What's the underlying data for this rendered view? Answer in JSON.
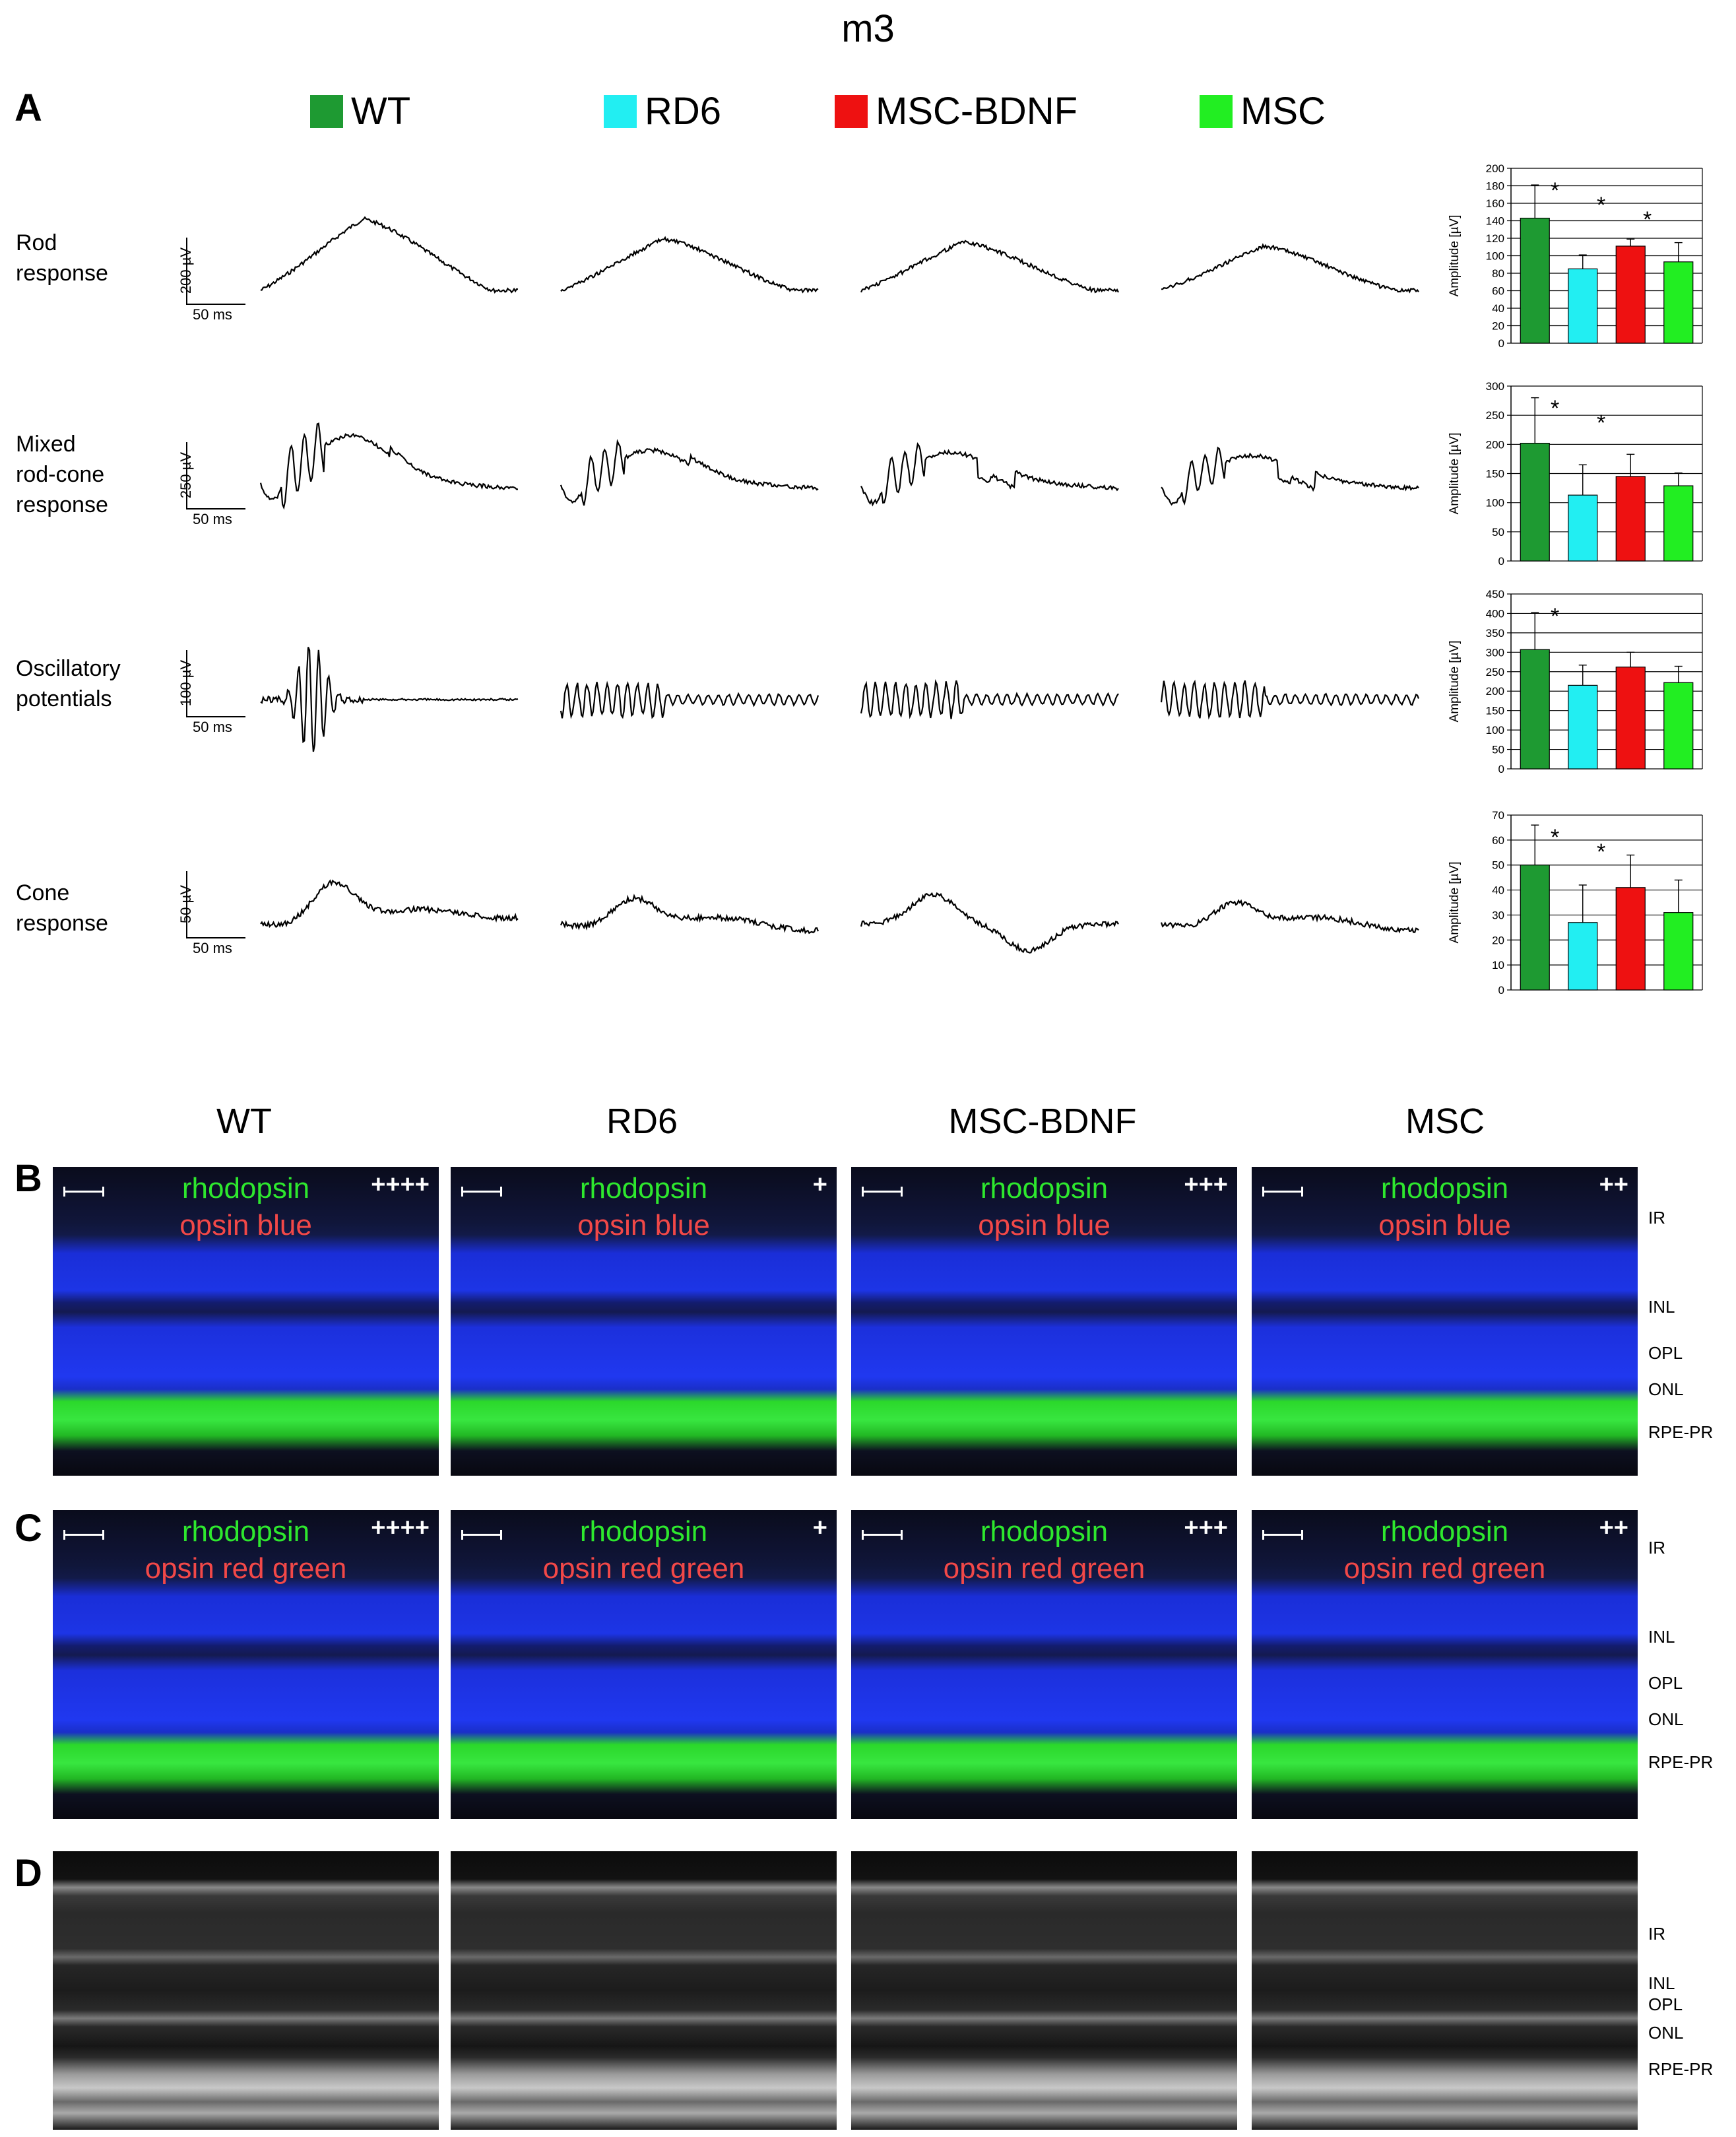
{
  "title": "m3",
  "panel_labels": {
    "A": "A",
    "B": "B",
    "C": "C",
    "D": "D"
  },
  "legend": [
    {
      "label": "WT",
      "color": "#1e9a32"
    },
    {
      "label": "RD6",
      "color": "#22eef2"
    },
    {
      "label": "MSC-BDNF",
      "color": "#ee1111"
    },
    {
      "label": "MSC",
      "color": "#22ee22"
    }
  ],
  "erg_rows": [
    {
      "label_lines": [
        "Rod",
        "response"
      ],
      "scale_v": "200 µV",
      "scale_t": "50 ms"
    },
    {
      "label_lines": [
        "Mixed",
        "rod-cone",
        "response"
      ],
      "scale_v": "250 µV",
      "scale_t": "50 ms"
    },
    {
      "label_lines": [
        "Oscillatory",
        "potentials"
      ],
      "scale_v": "100 µV",
      "scale_t": "50 ms"
    },
    {
      "label_lines": [
        "Cone",
        "response"
      ],
      "scale_v": "50 µV",
      "scale_t": "50 ms"
    }
  ],
  "chart_data": [
    {
      "type": "bar",
      "title": "Rod response",
      "ylabel": "Amplitude [µV]",
      "categories": [
        "WT",
        "RD6",
        "MSC-BDNF",
        "MSC"
      ],
      "values": [
        143,
        85,
        111,
        93
      ],
      "errors": [
        38,
        16,
        8,
        22
      ],
      "ylim": [
        0,
        200
      ],
      "yticks": [
        "0",
        "20",
        "40",
        "60",
        "80",
        "100",
        "120",
        "140",
        "160",
        "180",
        "200"
      ],
      "significance": [
        "*",
        "*",
        "*"
      ]
    },
    {
      "type": "bar",
      "title": "Mixed rod-cone response",
      "ylabel": "Amplitude [µV]",
      "categories": [
        "WT",
        "RD6",
        "MSC-BDNF",
        "MSC"
      ],
      "values": [
        202,
        113,
        145,
        129
      ],
      "errors": [
        78,
        52,
        38,
        22
      ],
      "ylim": [
        0,
        300
      ],
      "yticks": [
        "0",
        "50",
        "100",
        "150",
        "200",
        "250",
        "300"
      ],
      "significance": [
        "*",
        "*"
      ]
    },
    {
      "type": "bar",
      "title": "Oscillatory potentials",
      "ylabel": "Amplitude [µV]",
      "categories": [
        "WT",
        "RD6",
        "MSC-BDNF",
        "MSC"
      ],
      "values": [
        307,
        215,
        262,
        222
      ],
      "errors": [
        95,
        52,
        38,
        42
      ],
      "ylim": [
        0,
        450
      ],
      "yticks": [
        "0",
        "50",
        "100",
        "150",
        "200",
        "250",
        "300",
        "350",
        "400",
        "450"
      ],
      "significance": [
        "*"
      ]
    },
    {
      "type": "bar",
      "title": "Cone response",
      "ylabel": "Amplitude [µV]",
      "categories": [
        "WT",
        "RD6",
        "MSC-BDNF",
        "MSC"
      ],
      "values": [
        50,
        27,
        41,
        31
      ],
      "errors": [
        16,
        15,
        13,
        13
      ],
      "ylim": [
        0,
        70
      ],
      "yticks": [
        "0",
        "10",
        "20",
        "30",
        "40",
        "50",
        "60",
        "70"
      ],
      "significance": [
        "*",
        "*"
      ]
    }
  ],
  "column_headers": [
    "WT",
    "RD6",
    "MSC-BDNF",
    "MSC"
  ],
  "panel_B": {
    "stain_green": "rhodopsin",
    "stain_red": "opsin blue",
    "scores": [
      "++++",
      "+",
      "+++",
      "++"
    ],
    "layers": [
      "IR",
      "INL",
      "OPL",
      "ONL",
      "RPE-PR"
    ]
  },
  "panel_C": {
    "stain_green": "rhodopsin",
    "stain_red": "opsin red green",
    "scores": [
      "++++",
      "+",
      "+++",
      "++"
    ],
    "layers": [
      "IR",
      "INL",
      "OPL",
      "ONL",
      "RPE-PR"
    ]
  },
  "panel_D": {
    "layers": [
      "IR",
      "INL",
      "OPL",
      "ONL",
      "RPE-PR"
    ]
  }
}
